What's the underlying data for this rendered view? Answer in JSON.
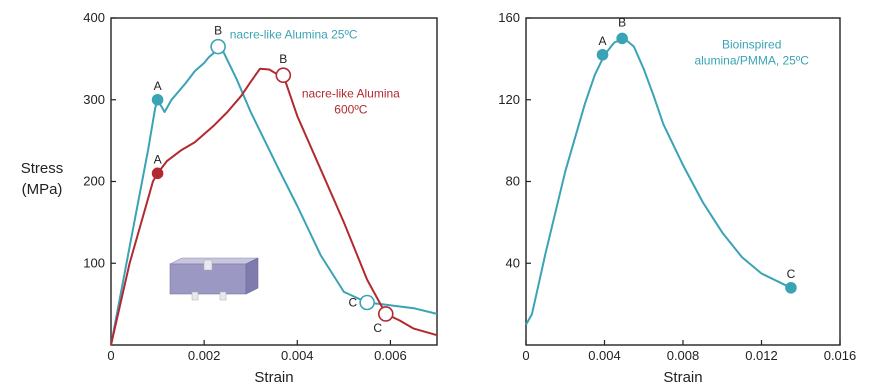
{
  "chart_data": [
    {
      "type": "line",
      "xlabel": "Strain",
      "ylabel_lines": [
        "Stress",
        "(MPa)"
      ],
      "xlim": [
        0,
        0.007
      ],
      "ylim": [
        0,
        400
      ],
      "xticks": [
        0,
        0.002,
        0.004,
        0.006
      ],
      "xtick_labels": [
        "0",
        "0.002",
        "0.004",
        "0.006"
      ],
      "yticks": [
        100,
        200,
        300,
        400
      ],
      "ytick_labels": [
        "100",
        "200",
        "300",
        "400"
      ],
      "series": [
        {
          "name": "nacre-like Alumina 25°C",
          "color": "#3aa3b5",
          "x": [
            0,
            0.0004,
            0.0008,
            0.00095,
            0.001,
            0.00105,
            0.00115,
            0.0013,
            0.0016,
            0.0018,
            0.002,
            0.0021,
            0.0022,
            0.0023,
            0.0024,
            0.0027,
            0.003,
            0.0033,
            0.0036,
            0.004,
            0.0045,
            0.005,
            0.0055,
            0.0058,
            0.0065,
            0.007
          ],
          "y": [
            0,
            120,
            240,
            290,
            300,
            295,
            285,
            300,
            320,
            335,
            345,
            352,
            357,
            365,
            360,
            325,
            285,
            250,
            215,
            170,
            110,
            65,
            52,
            50,
            45,
            38
          ]
        },
        {
          "name": "nacre-like Alumina 600°C",
          "color": "#b22a30",
          "x": [
            0,
            0.0004,
            0.0008,
            0.0009,
            0.001,
            0.0012,
            0.0015,
            0.0018,
            0.002,
            0.0022,
            0.0025,
            0.0028,
            0.003,
            0.0032,
            0.0034,
            0.0036,
            0.0037,
            0.004,
            0.0045,
            0.005,
            0.0055,
            0.0059,
            0.0062,
            0.0065,
            0.007
          ],
          "y": [
            0,
            100,
            180,
            200,
            210,
            225,
            238,
            248,
            258,
            268,
            285,
            305,
            322,
            338,
            337,
            330,
            330,
            280,
            215,
            150,
            80,
            38,
            30,
            20,
            12
          ]
        }
      ],
      "points": [
        {
          "label": "A",
          "series": 0,
          "x": 0.001,
          "y": 300,
          "filled": true
        },
        {
          "label": "B",
          "series": 0,
          "x": 0.0023,
          "y": 365,
          "filled": false
        },
        {
          "label": "C",
          "series": 0,
          "x": 0.0055,
          "y": 52,
          "filled": false
        },
        {
          "label": "A",
          "series": 1,
          "x": 0.001,
          "y": 210,
          "filled": true
        },
        {
          "label": "B",
          "series": 1,
          "x": 0.0037,
          "y": 330,
          "filled": false
        },
        {
          "label": "C",
          "series": 1,
          "x": 0.0059,
          "y": 38,
          "filled": false
        }
      ],
      "annotations": [
        {
          "lines": [
            "nacre-like Alumina 25ºC"
          ],
          "color": "#3aa3b5",
          "anchor": "start",
          "x": 0.00255,
          "y": 375
        },
        {
          "lines": [
            "nacre-like Alumina",
            "600ºC"
          ],
          "color": "#b22a30",
          "anchor": "middle",
          "x": 0.00515,
          "y": 303
        }
      ]
    },
    {
      "type": "line",
      "xlabel": "Strain",
      "xlim": [
        0,
        0.016
      ],
      "ylim": [
        0,
        160
      ],
      "xticks": [
        0,
        0.004,
        0.008,
        0.012,
        0.016
      ],
      "xtick_labels": [
        "0",
        "0.004",
        "0.008",
        "0.012",
        "0.016"
      ],
      "yticks": [
        40,
        80,
        120,
        160
      ],
      "ytick_labels": [
        "40",
        "80",
        "120",
        "160"
      ],
      "series": [
        {
          "name": "Bioinspired alumina/PMMA, 25°C",
          "color": "#3aa3b5",
          "x": [
            0,
            0.0003,
            0.001,
            0.002,
            0.003,
            0.0035,
            0.004,
            0.0045,
            0.005,
            0.0055,
            0.006,
            0.0065,
            0.007,
            0.008,
            0.009,
            0.01,
            0.011,
            0.012,
            0.0135
          ],
          "y": [
            10,
            15,
            45,
            85,
            118,
            132,
            142,
            148,
            150,
            146,
            135,
            122,
            108,
            88,
            70,
            55,
            43,
            35,
            28
          ]
        }
      ],
      "points": [
        {
          "label": "A",
          "series": 0,
          "x": 0.0039,
          "y": 142,
          "filled": true
        },
        {
          "label": "B",
          "series": 0,
          "x": 0.0049,
          "y": 150,
          "filled": true
        },
        {
          "label": "C",
          "series": 0,
          "x": 0.0135,
          "y": 28,
          "filled": true
        }
      ],
      "annotations": [
        {
          "lines": [
            "Bioinspired",
            "alumina/PMMA, 25ºC"
          ],
          "color": "#3aa3b5",
          "anchor": "middle",
          "x": 0.0115,
          "y": 145
        }
      ]
    }
  ]
}
